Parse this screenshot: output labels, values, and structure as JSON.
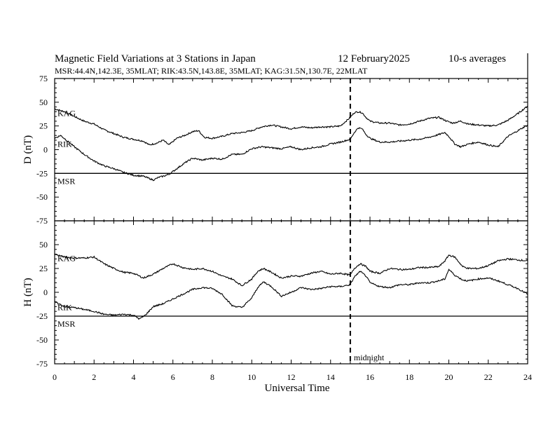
{
  "header": {
    "title": "Magnetic Field Variations at 3 Stations in Japan",
    "date": "12 February2025",
    "averaging": "10-s averages",
    "stations": "MSR:44.4N,142.3E, 35MLAT;  RIK:43.5N,143.8E, 35MLAT;  KAG:31.5N,130.7E, 22MLAT"
  },
  "x_axis": {
    "label": "Universal Time",
    "ticks": [
      "0",
      "2",
      "4",
      "6",
      "8",
      "10",
      "12",
      "14",
      "16",
      "18",
      "20",
      "22",
      "24"
    ]
  },
  "marker": {
    "x": 15,
    "label": "midnight"
  },
  "chart_data": [
    {
      "type": "line",
      "ylabel": "D (nT)",
      "xlim": [
        0,
        24
      ],
      "ylim": [
        -75,
        75
      ],
      "yticks": [
        "75",
        "50",
        "25",
        "0",
        "-25",
        "-50",
        "-75"
      ],
      "series": [
        {
          "name": "KAG",
          "x": [
            0,
            0.5,
            1,
            1.5,
            2,
            2.5,
            3,
            3.5,
            4,
            4.5,
            4.8,
            5.2,
            5.5,
            5.8,
            6.2,
            6.6,
            7,
            7.3,
            7.6,
            8,
            8.5,
            9,
            9.5,
            10,
            10.5,
            11,
            11.5,
            12,
            12.5,
            13,
            13.5,
            14,
            14.5,
            15,
            15.2,
            15.4,
            15.6,
            15.8,
            16,
            16.5,
            17,
            17.5,
            18,
            18.5,
            19,
            19.5,
            19.9,
            20.2,
            20.6,
            21,
            21.5,
            22,
            22.5,
            23,
            23.5,
            24
          ],
          "values": [
            43,
            40,
            35,
            30,
            27,
            21,
            17,
            13,
            11,
            9,
            5,
            7,
            10,
            5,
            12,
            15,
            19,
            20,
            13,
            12,
            14,
            17,
            18,
            20,
            24,
            26,
            24,
            22,
            24,
            23,
            24,
            24,
            25,
            34,
            39,
            40,
            39,
            34,
            30,
            28,
            28,
            26,
            27,
            30,
            33,
            34,
            30,
            28,
            30,
            27,
            26,
            25,
            26,
            31,
            38,
            46
          ]
        },
        {
          "name": "RIK",
          "x": [
            0,
            0.3,
            0.6,
            1,
            1.5,
            2,
            2.5,
            3,
            3.5,
            4,
            4.5,
            5,
            5.3,
            5.5,
            5.8,
            6.2,
            6.6,
            7,
            7.5,
            8,
            8.5,
            9,
            9.5,
            10,
            10.5,
            11,
            11.5,
            12,
            12.5,
            13,
            13.5,
            14,
            14.5,
            15,
            15.2,
            15.4,
            15.6,
            15.8,
            16,
            16.5,
            17,
            17.5,
            18,
            18.5,
            19,
            19.5,
            19.8,
            20,
            20.3,
            20.6,
            21,
            21.5,
            22,
            22.5,
            23,
            23.5,
            24
          ],
          "values": [
            12,
            15,
            10,
            3,
            -5,
            -12,
            -17,
            -20,
            -24,
            -27,
            -28,
            -32,
            -29,
            -28,
            -26,
            -20,
            -14,
            -9,
            -11,
            -9,
            -10,
            -5,
            -5,
            1,
            3,
            2,
            1,
            3,
            0,
            2,
            3,
            6,
            8,
            11,
            18,
            23,
            22,
            16,
            12,
            8,
            8,
            9,
            10,
            11,
            13,
            16,
            18,
            14,
            6,
            3,
            6,
            8,
            5,
            3,
            14,
            20,
            26
          ]
        },
        {
          "name": "MSR",
          "x": [
            0,
            24
          ],
          "values": [
            -25,
            -25
          ]
        }
      ]
    },
    {
      "type": "line",
      "ylabel": "H (nT)",
      "xlim": [
        0,
        24
      ],
      "ylim": [
        -75,
        75
      ],
      "yticks": [
        "75",
        "50",
        "25",
        "0",
        "-25",
        "-50",
        "-75"
      ],
      "series": [
        {
          "name": "KAG",
          "x": [
            0,
            0.5,
            1,
            1.5,
            2,
            2.5,
            3,
            3.5,
            4,
            4.5,
            5,
            5.5,
            6,
            6.5,
            7,
            7.5,
            8,
            8.5,
            9,
            9.5,
            10,
            10.3,
            10.6,
            11,
            11.5,
            12,
            12.5,
            13,
            13.5,
            14,
            14.5,
            15,
            15.2,
            15.5,
            15.8,
            16,
            16.5,
            17,
            17.5,
            18,
            18.5,
            19,
            19.5,
            19.8,
            20,
            20.3,
            20.7,
            21,
            21.5,
            22,
            22.5,
            23,
            23.5,
            24
          ],
          "values": [
            40,
            37,
            36,
            36,
            37,
            30,
            25,
            21,
            20,
            15,
            19,
            25,
            30,
            26,
            24,
            25,
            22,
            17,
            14,
            7,
            14,
            22,
            25,
            21,
            15,
            17,
            17,
            20,
            22,
            19,
            20,
            18,
            25,
            30,
            27,
            22,
            20,
            25,
            24,
            24,
            26,
            26,
            27,
            33,
            39,
            37,
            27,
            25,
            25,
            28,
            33,
            35,
            34,
            33
          ]
        },
        {
          "name": "RIK",
          "x": [
            0,
            0.5,
            1,
            1.5,
            2,
            2.5,
            3,
            3.5,
            4,
            4.3,
            4.6,
            5,
            5.5,
            6,
            6.5,
            7,
            7.5,
            8,
            8.5,
            9,
            9.5,
            10,
            10.3,
            10.6,
            11,
            11.5,
            12,
            12.5,
            13,
            13.5,
            14,
            14.5,
            15,
            15.2,
            15.5,
            15.8,
            16,
            16.5,
            17,
            17.5,
            18,
            18.5,
            19,
            19.5,
            19.8,
            20,
            20.3,
            20.7,
            21,
            21.5,
            22,
            22.5,
            23,
            23.5,
            24
          ],
          "values": [
            -10,
            -15,
            -16,
            -18,
            -20,
            -23,
            -24,
            -23,
            -24,
            -28,
            -24,
            -15,
            -12,
            -7,
            -2,
            3,
            5,
            4,
            -2,
            -14,
            -16,
            -6,
            5,
            11,
            6,
            -4,
            0,
            5,
            3,
            4,
            6,
            6,
            8,
            16,
            22,
            17,
            10,
            6,
            5,
            8,
            8,
            10,
            10,
            12,
            14,
            24,
            18,
            13,
            12,
            14,
            15,
            12,
            8,
            4,
            -2
          ]
        },
        {
          "name": "MSR",
          "x": [
            0,
            24
          ],
          "values": [
            -25,
            -25
          ]
        }
      ]
    }
  ]
}
